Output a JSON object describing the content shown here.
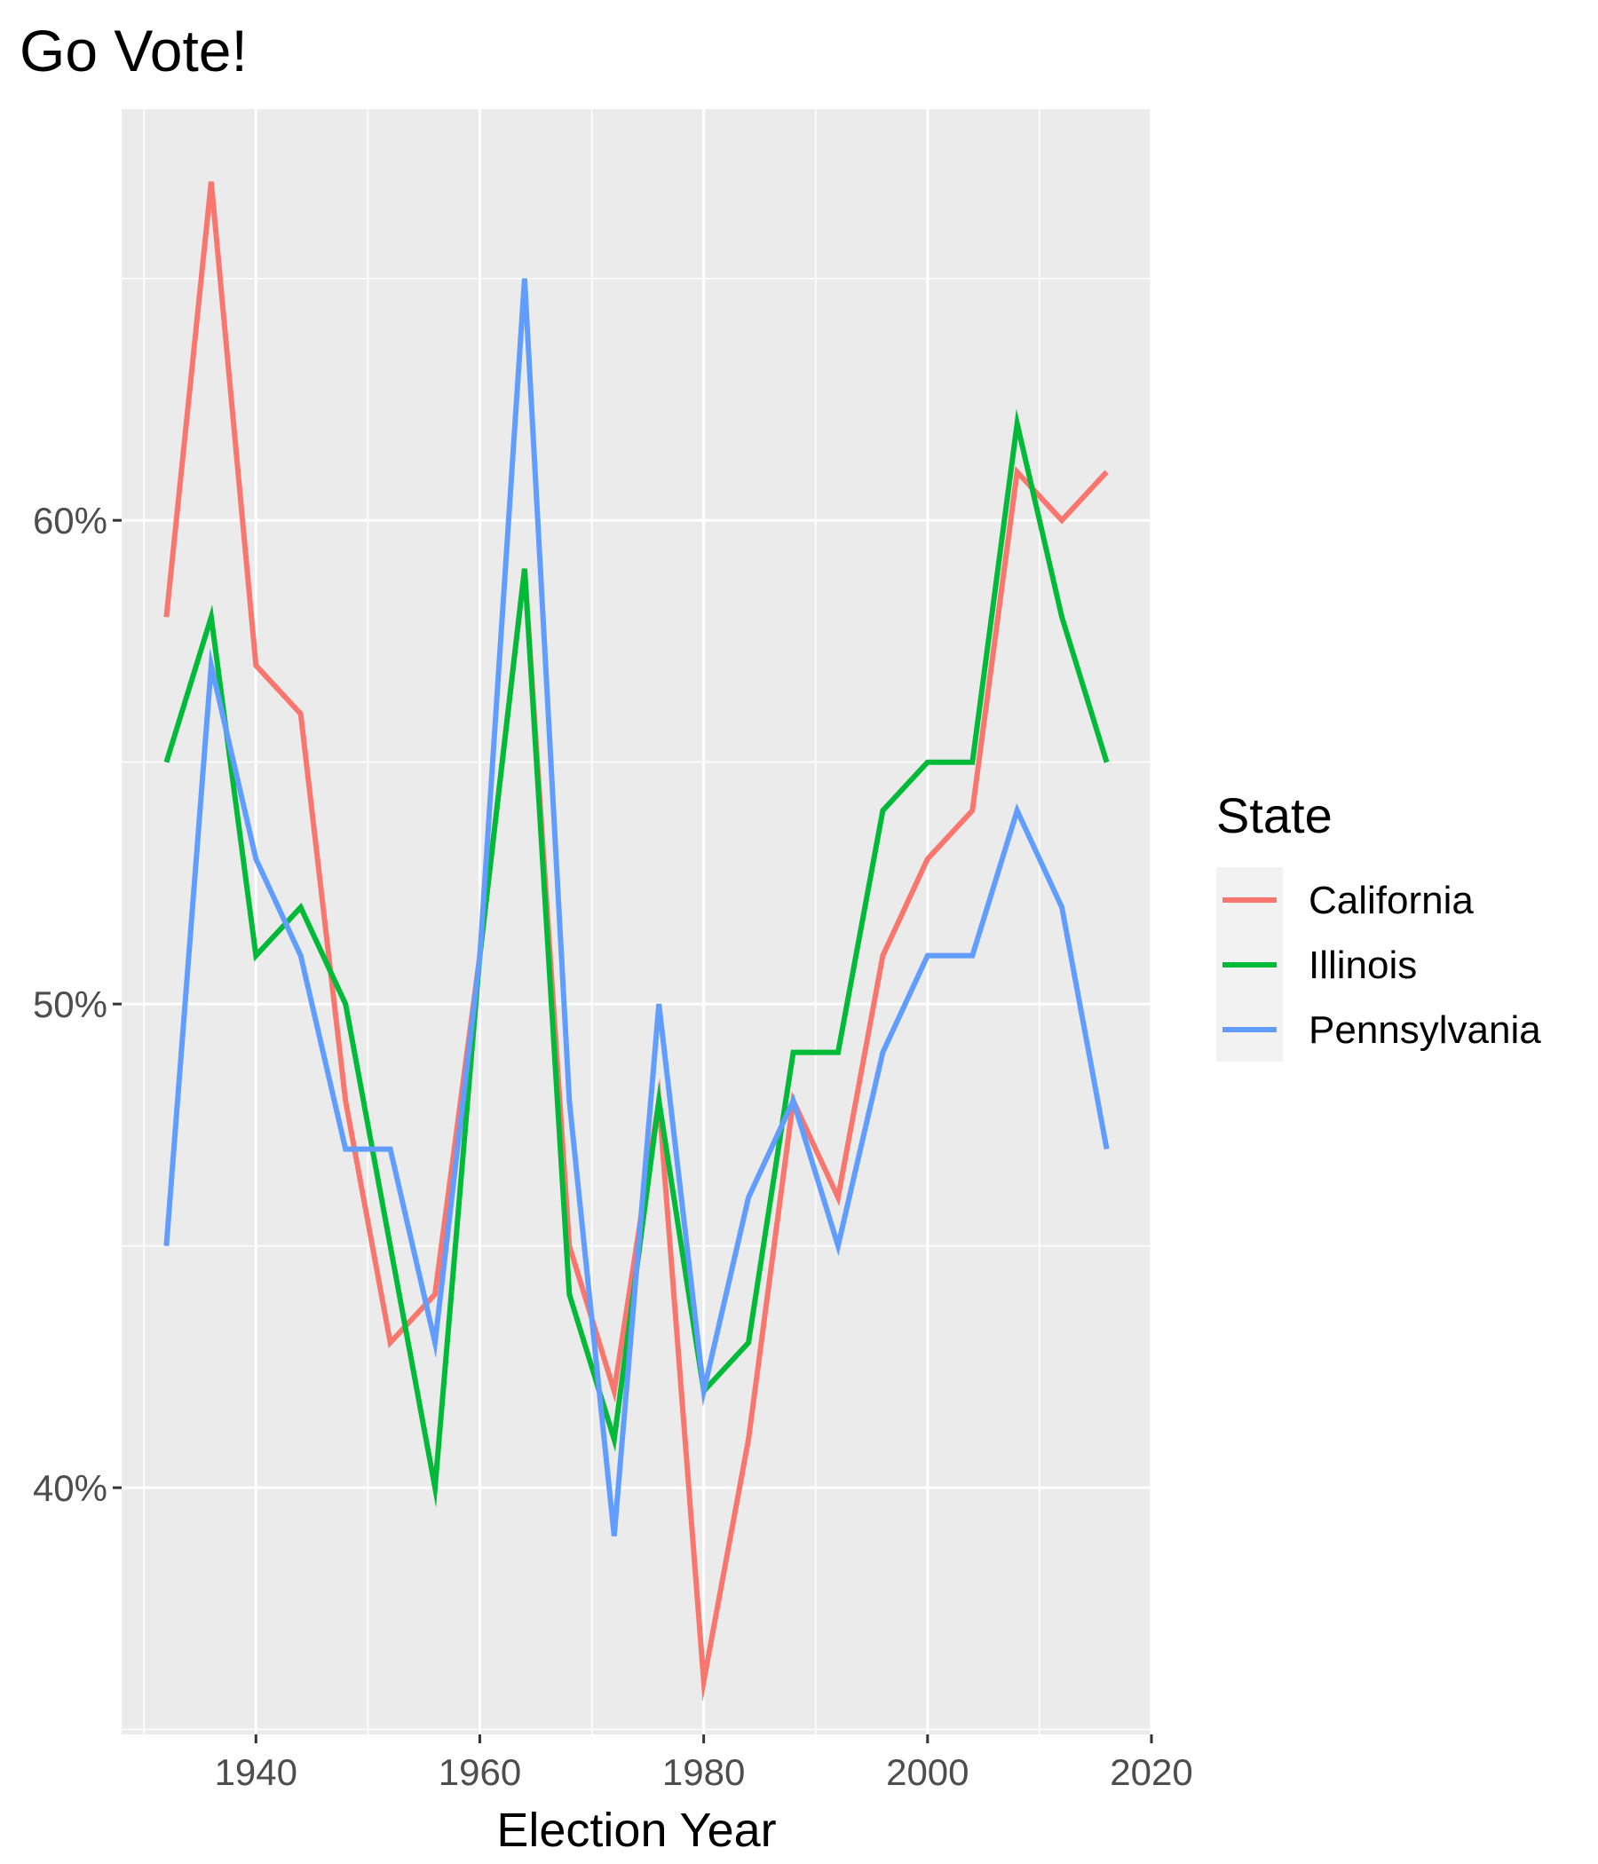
{
  "chart_data": {
    "type": "line",
    "title": "Go Vote!",
    "xlabel": "Election Year",
    "ylabel": "",
    "xlim": [
      1928,
      2020
    ],
    "ylim": [
      34.9,
      68.5
    ],
    "x_ticks": [
      1940,
      1960,
      1980,
      2000,
      2020
    ],
    "y_ticks": [
      40,
      50,
      60
    ],
    "y_tick_labels": [
      "40%",
      "50%",
      "60%"
    ],
    "grid": true,
    "legend": {
      "title": "State",
      "position": "right"
    },
    "x": [
      1932,
      1936,
      1940,
      1944,
      1948,
      1952,
      1956,
      1960,
      1964,
      1968,
      1972,
      1976,
      1980,
      1984,
      1988,
      1992,
      1996,
      2000,
      2004,
      2008,
      2012,
      2016
    ],
    "series": [
      {
        "name": "California",
        "color": "#f8766d",
        "values": [
          58,
          67,
          57,
          56,
          48,
          43,
          44,
          51,
          59,
          45,
          42,
          48,
          36,
          41,
          48,
          46,
          51,
          53,
          54,
          61,
          60,
          61
        ]
      },
      {
        "name": "Illinois",
        "color": "#00ba38",
        "values": [
          55,
          58,
          51,
          52,
          50,
          45,
          40,
          51,
          59,
          44,
          41,
          48,
          42,
          43,
          49,
          49,
          54,
          55,
          55,
          62,
          58,
          55
        ]
      },
      {
        "name": "Pennsylvania",
        "color": "#619cff",
        "values": [
          45,
          57,
          53,
          51,
          47,
          47,
          43,
          51,
          65,
          48,
          39,
          50,
          42,
          46,
          48,
          45,
          49,
          51,
          51,
          54,
          52,
          47
        ]
      }
    ]
  }
}
